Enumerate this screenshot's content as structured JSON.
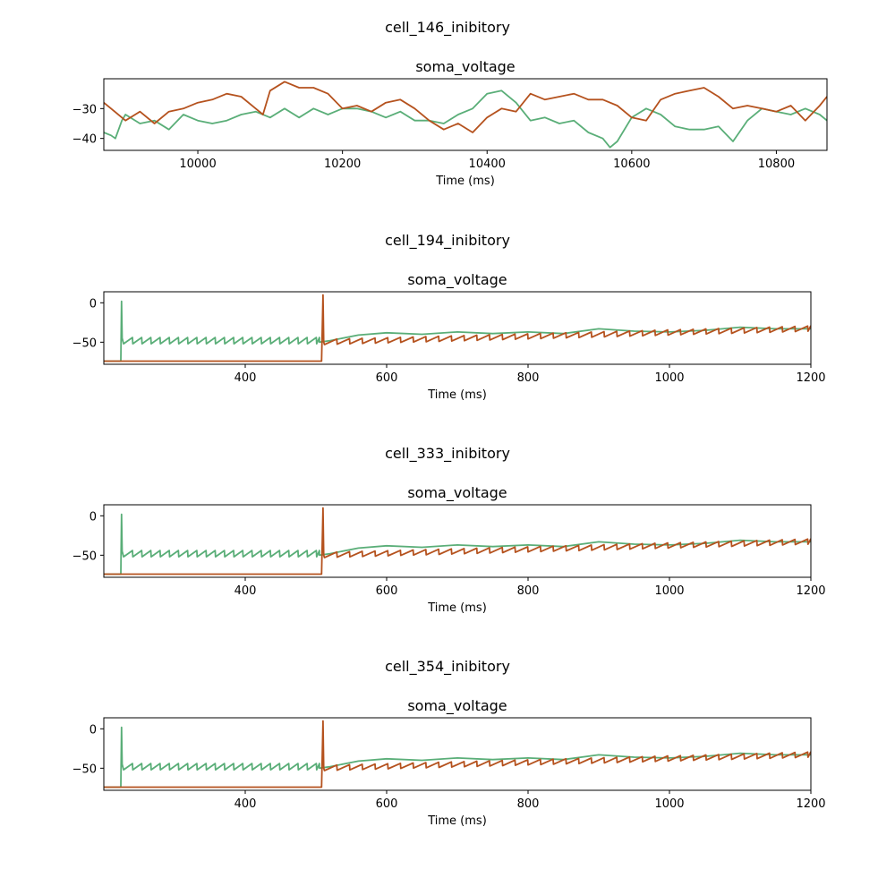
{
  "colors": {
    "series_orange": "#b5521e",
    "series_green": "#5aae78",
    "axis": "#000000"
  },
  "chart_data": [
    {
      "type": "line",
      "suptitle": "cell_146_inibitory",
      "title": "soma_voltage",
      "xlabel": "Time (ms)",
      "ylabel": "",
      "xlim": [
        9870,
        10870
      ],
      "ylim": [
        -44,
        -20
      ],
      "xticks": [
        10000,
        10200,
        10400,
        10600,
        10800
      ],
      "xtick_labels": [
        "10000",
        "10200",
        "10400",
        "10600",
        "10800"
      ],
      "yticks": [
        -30,
        -40
      ],
      "ytick_labels": [
        "−30",
        "−40"
      ],
      "grid": false,
      "series": [
        {
          "color": "#b5521e",
          "x": [
            9870,
            9880,
            9900,
            9920,
            9940,
            9960,
            9980,
            10000,
            10020,
            10040,
            10060,
            10080,
            10090,
            10100,
            10120,
            10140,
            10160,
            10180,
            10200,
            10220,
            10240,
            10260,
            10280,
            10300,
            10320,
            10340,
            10360,
            10380,
            10400,
            10420,
            10440,
            10460,
            10480,
            10500,
            10520,
            10540,
            10560,
            10580,
            10600,
            10620,
            10640,
            10660,
            10680,
            10700,
            10720,
            10740,
            10760,
            10780,
            10800,
            10820,
            10840,
            10860,
            10870
          ],
          "y": [
            -28,
            -30,
            -34,
            -31,
            -35,
            -31,
            -30,
            -28,
            -27,
            -25,
            -26,
            -30,
            -32,
            -24,
            -21,
            -23,
            -23,
            -25,
            -30,
            -29,
            -31,
            -28,
            -27,
            -30,
            -34,
            -37,
            -35,
            -38,
            -33,
            -30,
            -31,
            -25,
            -27,
            -26,
            -25,
            -27,
            -27,
            -29,
            -33,
            -34,
            -27,
            -25,
            -24,
            -23,
            -26,
            -30,
            -29,
            -30,
            -31,
            -29,
            -34,
            -29,
            -26
          ]
        },
        {
          "color": "#5aae78",
          "x": [
            9870,
            9880,
            9886,
            9895,
            9900,
            9920,
            9940,
            9960,
            9980,
            10000,
            10020,
            10040,
            10060,
            10080,
            10100,
            10120,
            10140,
            10160,
            10180,
            10200,
            10220,
            10240,
            10260,
            10280,
            10300,
            10320,
            10340,
            10360,
            10380,
            10400,
            10420,
            10440,
            10460,
            10480,
            10500,
            10520,
            10540,
            10560,
            10570,
            10580,
            10600,
            10620,
            10640,
            10660,
            10680,
            10700,
            10720,
            10740,
            10760,
            10780,
            10800,
            10820,
            10840,
            10860,
            10870
          ],
          "y": [
            -38,
            -39,
            -40,
            -34,
            -32,
            -35,
            -34,
            -37,
            -32,
            -34,
            -35,
            -34,
            -32,
            -31,
            -33,
            -30,
            -33,
            -30,
            -32,
            -30,
            -30,
            -31,
            -33,
            -31,
            -34,
            -34,
            -35,
            -32,
            -30,
            -25,
            -24,
            -28,
            -34,
            -33,
            -35,
            -34,
            -38,
            -40,
            -43,
            -41,
            -33,
            -30,
            -32,
            -36,
            -37,
            -37,
            -36,
            -41,
            -34,
            -30,
            -31,
            -32,
            -30,
            -32,
            -34
          ]
        }
      ]
    },
    {
      "type": "line",
      "suptitle": "cell_194_inibitory",
      "title": "soma_voltage",
      "xlabel": "Time (ms)",
      "ylabel": "",
      "xlim": [
        200,
        1200
      ],
      "ylim": [
        -78,
        14
      ],
      "xticks": [
        400,
        600,
        800,
        1000,
        1200
      ],
      "xtick_labels": [
        "400",
        "600",
        "800",
        "1000",
        "1200"
      ],
      "yticks": [
        0,
        -50
      ],
      "ytick_labels": [
        "0",
        "−50"
      ],
      "grid": false,
      "green_spike": {
        "x": 225,
        "peak": 2,
        "reset": -45
      },
      "green_sawtooth": {
        "start": 228,
        "end": 505,
        "period": 13,
        "low": -52,
        "high": -44
      },
      "green_tail": {
        "x": [
          505,
          520,
          560,
          600,
          650,
          700,
          750,
          800,
          850,
          900,
          950,
          1000,
          1050,
          1100,
          1150,
          1200
        ],
        "y": [
          -50,
          -48,
          -41,
          -38,
          -40,
          -37,
          -39,
          -37,
          -39,
          -33,
          -36,
          -37,
          -35,
          -31,
          -33,
          -33
        ]
      },
      "orange_rest": {
        "start": 200,
        "end": 508,
        "value": -74
      },
      "orange_spike": {
        "x": 510,
        "peak": 10,
        "reset": -50
      },
      "orange_sawtooth": {
        "start": 512,
        "end": 1200,
        "period": 18,
        "low_start": -53,
        "low_end": -36,
        "amp": 7
      }
    },
    {
      "type": "line",
      "suptitle": "cell_333_inibitory",
      "title": "soma_voltage",
      "xlabel": "Time (ms)",
      "ylabel": "",
      "xlim": [
        200,
        1200
      ],
      "ylim": [
        -78,
        14
      ],
      "xticks": [
        400,
        600,
        800,
        1000,
        1200
      ],
      "xtick_labels": [
        "400",
        "600",
        "800",
        "1000",
        "1200"
      ],
      "yticks": [
        0,
        -50
      ],
      "ytick_labels": [
        "0",
        "−50"
      ],
      "grid": false,
      "green_spike": {
        "x": 225,
        "peak": 2,
        "reset": -45
      },
      "green_sawtooth": {
        "start": 228,
        "end": 505,
        "period": 13,
        "low": -52,
        "high": -44
      },
      "green_tail": {
        "x": [
          505,
          520,
          560,
          600,
          650,
          700,
          750,
          800,
          850,
          900,
          950,
          1000,
          1050,
          1100,
          1150,
          1200
        ],
        "y": [
          -50,
          -48,
          -41,
          -38,
          -40,
          -37,
          -39,
          -37,
          -39,
          -33,
          -36,
          -37,
          -35,
          -31,
          -33,
          -33
        ]
      },
      "orange_rest": {
        "start": 200,
        "end": 508,
        "value": -74
      },
      "orange_spike": {
        "x": 510,
        "peak": 10,
        "reset": -50
      },
      "orange_sawtooth": {
        "start": 512,
        "end": 1200,
        "period": 18,
        "low_start": -53,
        "low_end": -36,
        "amp": 7
      }
    },
    {
      "type": "line",
      "suptitle": "cell_354_inibitory",
      "title": "soma_voltage",
      "xlabel": "Time (ms)",
      "ylabel": "",
      "xlim": [
        200,
        1200
      ],
      "ylim": [
        -78,
        14
      ],
      "xticks": [
        400,
        600,
        800,
        1000,
        1200
      ],
      "xtick_labels": [
        "400",
        "600",
        "800",
        "1000",
        "1200"
      ],
      "yticks": [
        0,
        -50
      ],
      "ytick_labels": [
        "0",
        "−50"
      ],
      "grid": false,
      "green_spike": {
        "x": 225,
        "peak": 2,
        "reset": -45
      },
      "green_sawtooth": {
        "start": 228,
        "end": 505,
        "period": 13,
        "low": -52,
        "high": -44
      },
      "green_tail": {
        "x": [
          505,
          520,
          560,
          600,
          650,
          700,
          750,
          800,
          850,
          900,
          950,
          1000,
          1050,
          1100,
          1150,
          1200
        ],
        "y": [
          -50,
          -48,
          -41,
          -38,
          -40,
          -37,
          -39,
          -37,
          -39,
          -33,
          -36,
          -37,
          -35,
          -31,
          -33,
          -33
        ]
      },
      "orange_rest": {
        "start": 200,
        "end": 508,
        "value": -74
      },
      "orange_spike": {
        "x": 510,
        "peak": 10,
        "reset": -50
      },
      "orange_sawtooth": {
        "start": 512,
        "end": 1200,
        "period": 18,
        "low_start": -53,
        "low_end": -36,
        "amp": 7
      }
    }
  ]
}
